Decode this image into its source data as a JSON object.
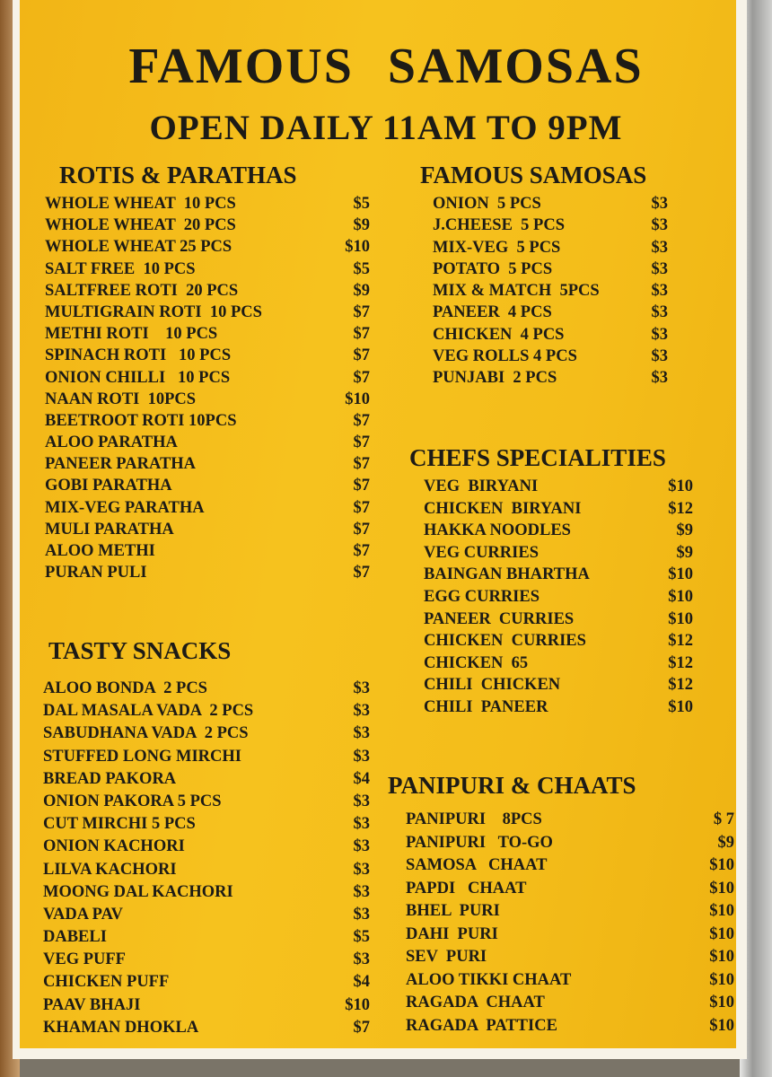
{
  "header": {
    "title": "FAMOUS   SAMOSAS",
    "subtitle": "OPEN DAILY 11AM TO 9PM"
  },
  "colors": {
    "board": "#f4bd1a",
    "text": "#1d1b16"
  },
  "sections": [
    {
      "id": "rotis",
      "title": "ROTIS & PARATHAS",
      "items": [
        {
          "name": "WHOLE WHEAT  10 PCS",
          "price": "$5"
        },
        {
          "name": "WHOLE WHEAT  20 PCS",
          "price": "$9"
        },
        {
          "name": "WHOLE WHEAT 25 PCS",
          "price": "$10"
        },
        {
          "name": "SALT FREE  10 PCS",
          "price": "$5"
        },
        {
          "name": "SALTFREE ROTI  20 PCS",
          "price": "$9"
        },
        {
          "name": "MULTIGRAIN ROTI  10 PCS",
          "price": "$7"
        },
        {
          "name": "METHI ROTI    10 PCS",
          "price": "$7"
        },
        {
          "name": "SPINACH ROTI   10 PCS",
          "price": "$7"
        },
        {
          "name": "ONION CHILLI   10 PCS",
          "price": "$7"
        },
        {
          "name": "NAAN ROTI  10PCS",
          "price": "$10"
        },
        {
          "name": "BEETROOT ROTI 10PCS",
          "price": "$7"
        },
        {
          "name": "ALOO PARATHA",
          "price": "$7"
        },
        {
          "name": "PANEER PARATHA",
          "price": "$7"
        },
        {
          "name": "GOBI PARATHA",
          "price": "$7"
        },
        {
          "name": "MIX-VEG PARATHA",
          "price": "$7"
        },
        {
          "name": "MULI PARATHA",
          "price": "$7"
        },
        {
          "name": "ALOO METHI",
          "price": "$7"
        },
        {
          "name": "PURAN PULI",
          "price": "$7"
        }
      ]
    },
    {
      "id": "snacks",
      "title": "TASTY SNACKS",
      "items": [
        {
          "name": "ALOO BONDA  2 PCS",
          "price": "$3"
        },
        {
          "name": "DAL MASALA VADA  2 PCS",
          "price": "$3"
        },
        {
          "name": "SABUDHANA VADA  2 PCS",
          "price": "$3"
        },
        {
          "name": "STUFFED LONG MIRCHI",
          "price": "$3"
        },
        {
          "name": "BREAD PAKORA",
          "price": "$4"
        },
        {
          "name": "ONION PAKORA 5 PCS",
          "price": "$3"
        },
        {
          "name": "CUT MIRCHI 5 PCS",
          "price": "$3"
        },
        {
          "name": "ONION KACHORI",
          "price": "$3"
        },
        {
          "name": "LILVA KACHORI",
          "price": "$3"
        },
        {
          "name": "MOONG DAL KACHORI",
          "price": "$3"
        },
        {
          "name": "VADA PAV",
          "price": "$3"
        },
        {
          "name": "DABELI",
          "price": "$5"
        },
        {
          "name": "VEG PUFF",
          "price": "$3"
        },
        {
          "name": "CHICKEN PUFF",
          "price": "$4"
        },
        {
          "name": "PAAV BHAJI",
          "price": "$10"
        },
        {
          "name": "KHAMAN DHOKLA",
          "price": "$7"
        }
      ]
    },
    {
      "id": "samosas",
      "title": "FAMOUS SAMOSAS",
      "items": [
        {
          "name": "ONION  5 PCS",
          "price": "$3"
        },
        {
          "name": "J.CHEESE  5 PCS",
          "price": "$3"
        },
        {
          "name": "MIX-VEG  5 PCS",
          "price": "$3"
        },
        {
          "name": "POTATO  5 PCS",
          "price": "$3"
        },
        {
          "name": "MIX & MATCH  5PCS",
          "price": "$3"
        },
        {
          "name": "PANEER  4 PCS",
          "price": "$3"
        },
        {
          "name": "CHICKEN  4 PCS",
          "price": "$3"
        },
        {
          "name": "VEG ROLLS 4 PCS",
          "price": "$3"
        },
        {
          "name": "PUNJABI  2 PCS",
          "price": "$3"
        }
      ]
    },
    {
      "id": "chefs",
      "title": "CHEFS SPECIALITIES",
      "items": [
        {
          "name": "VEG  BIRYANI",
          "price": "$10"
        },
        {
          "name": "CHICKEN  BIRYANI",
          "price": "$12"
        },
        {
          "name": "HAKKA NOODLES",
          "price": "$9"
        },
        {
          "name": "VEG CURRIES",
          "price": "$9"
        },
        {
          "name": "BAINGAN BHARTHA",
          "price": "$10"
        },
        {
          "name": "EGG CURRIES",
          "price": "$10"
        },
        {
          "name": "PANEER  CURRIES",
          "price": "$10"
        },
        {
          "name": "CHICKEN  CURRIES",
          "price": "$12"
        },
        {
          "name": "CHICKEN  65",
          "price": "$12"
        },
        {
          "name": "CHILI  CHICKEN",
          "price": "$12"
        },
        {
          "name": "CHILI  PANEER",
          "price": "$10"
        }
      ]
    },
    {
      "id": "chaats",
      "title": "PANIPURI & CHAATS",
      "items": [
        {
          "name": "PANIPURI    8PCS",
          "price": "$ 7"
        },
        {
          "name": "PANIPURI   TO-GO",
          "price": "$9"
        },
        {
          "name": "SAMOSA   CHAAT",
          "price": "$10"
        },
        {
          "name": "PAPDI   CHAAT",
          "price": "$10"
        },
        {
          "name": "BHEL  PURI",
          "price": "$10"
        },
        {
          "name": "DAHI  PURI",
          "price": "$10"
        },
        {
          "name": "SEV  PURI",
          "price": "$10"
        },
        {
          "name": "ALOO TIKKI CHAAT",
          "price": "$10"
        },
        {
          "name": "RAGADA  CHAAT",
          "price": "$10"
        },
        {
          "name": "RAGADA  PATTICE",
          "price": "$10"
        }
      ]
    }
  ]
}
